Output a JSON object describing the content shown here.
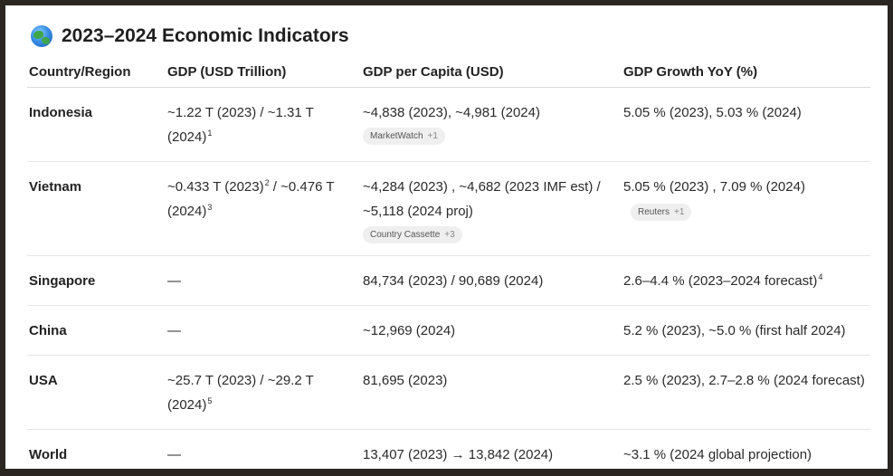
{
  "title": "2023–2024 Economic Indicators",
  "icons": {
    "title_icon": "globe-icon"
  },
  "table": {
    "headers": [
      "Country/Region",
      "GDP (USD Trillion)",
      "GDP per Capita (USD)",
      "GDP Growth YoY (%)"
    ],
    "rows": [
      {
        "country": "Indonesia",
        "gdp": {
          "text": "~1.22 T (2023) / ~1.31 T (2024)",
          "sup": "1"
        },
        "per_capita": {
          "text": "~4,838 (2023), ~4,981 (2024)",
          "chip": "MarketWatch",
          "chip_more": "+1"
        },
        "growth": {
          "text": "5.05 % (2023), 5.03 % (2024)"
        }
      },
      {
        "country": "Vietnam",
        "gdp": {
          "text_a": "~0.433 T (2023)",
          "sup_a": "2",
          "text_b": " / ~0.476 T (2024)",
          "sup_b": "3"
        },
        "per_capita": {
          "text": "~4,284 (2023) , ~4,682 (2023 IMF est) / ~5,118 (2024 proj)",
          "chip": "Country Cassette",
          "chip_more": "+3"
        },
        "growth": {
          "text": "5.05 % (2023) , 7.09 % (2024)",
          "chip": "Reuters",
          "chip_more": "+1"
        }
      },
      {
        "country": "Singapore",
        "gdp": {
          "text": "—"
        },
        "per_capita": {
          "text": "84,734 (2023) / 90,689 (2024)"
        },
        "growth": {
          "text": "2.6–4.4 % (2023–2024 forecast)",
          "sup": "4"
        }
      },
      {
        "country": "China",
        "gdp": {
          "text": "—"
        },
        "per_capita": {
          "text": "~12,969 (2024)"
        },
        "growth": {
          "text": "5.2 % (2023), ~5.0 % (first half 2024)"
        }
      },
      {
        "country": "USA",
        "gdp": {
          "text": "~25.7 T (2023) / ~29.2 T (2024)",
          "sup": "5"
        },
        "per_capita": {
          "text": "81,695 (2023)"
        },
        "growth": {
          "text": "2.5 % (2023), 2.7–2.8 % (2024 forecast)"
        }
      },
      {
        "country": "World",
        "gdp": {
          "text": "—"
        },
        "per_capita": {
          "text": "13,407 (2023) → 13,842 (2024)"
        },
        "growth": {
          "text": "~3.1 % (2024 global projection)"
        }
      }
    ]
  }
}
